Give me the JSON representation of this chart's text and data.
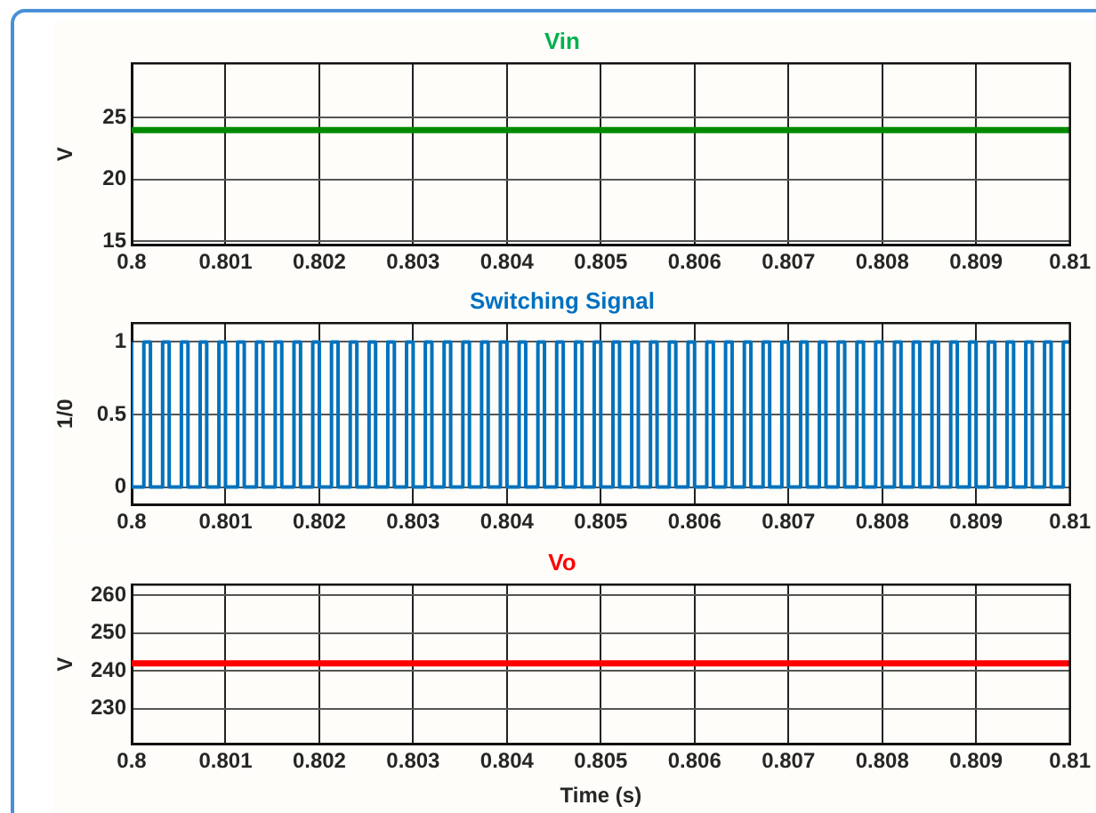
{
  "chart_data": [
    {
      "type": "line",
      "title": "Vin",
      "ylabel": "V",
      "x": [
        0.8,
        0.81
      ],
      "series": [
        {
          "color": "#008a00",
          "values": [
            24,
            24
          ]
        }
      ],
      "xlim": [
        0.8,
        0.81
      ],
      "xticks": [
        0.8,
        0.801,
        0.802,
        0.803,
        0.804,
        0.805,
        0.806,
        0.807,
        0.808,
        0.809,
        0.81
      ],
      "ylim": [
        14.7,
        29.4
      ],
      "yticks": [
        15,
        20,
        25
      ],
      "grid": true
    },
    {
      "type": "step",
      "title": "Switching Signal",
      "ylabel": "1/0",
      "x": [
        0.8,
        0.80013,
        0.8002,
        0.80033,
        0.8004,
        0.80053,
        0.8006,
        0.80073,
        0.8008,
        0.80093,
        0.801,
        0.80113,
        0.8012,
        0.80133,
        0.8014,
        0.80153,
        0.8016,
        0.80173,
        0.8018,
        0.80193,
        0.802,
        0.80213,
        0.8022,
        0.80233,
        0.8024,
        0.80253,
        0.8026,
        0.80273,
        0.8028,
        0.80293,
        0.803,
        0.80313,
        0.8032,
        0.80333,
        0.8034,
        0.80353,
        0.8036,
        0.80373,
        0.8038,
        0.80393,
        0.804,
        0.80413,
        0.8042,
        0.80433,
        0.8044,
        0.80453,
        0.8046,
        0.80473,
        0.8048,
        0.80493,
        0.805,
        0.80513,
        0.8052,
        0.80533,
        0.8054,
        0.80553,
        0.8056,
        0.80573,
        0.8058,
        0.80593,
        0.806,
        0.80613,
        0.8062,
        0.80633,
        0.8064,
        0.80653,
        0.8066,
        0.80673,
        0.8068,
        0.80693,
        0.807,
        0.80713,
        0.8072,
        0.80733,
        0.8074,
        0.80753,
        0.8076,
        0.80773,
        0.8078,
        0.80793,
        0.808,
        0.80813,
        0.8082,
        0.80833,
        0.8084,
        0.80853,
        0.8086,
        0.80873,
        0.8088,
        0.80893,
        0.809,
        0.80913,
        0.8092,
        0.80933,
        0.8094,
        0.80953,
        0.8096,
        0.80973,
        0.8098,
        0.80993,
        0.81
      ],
      "series": [
        {
          "color": "#0072bd",
          "values": [
            1,
            0,
            1,
            0,
            1,
            0,
            1,
            0,
            1,
            0,
            1,
            0,
            1,
            0,
            1,
            0,
            1,
            0,
            1,
            0,
            1,
            0,
            1,
            0,
            1,
            0,
            1,
            0,
            1,
            0,
            1,
            0,
            1,
            0,
            1,
            0,
            1,
            0,
            1,
            0,
            1,
            0,
            1,
            0,
            1,
            0,
            1,
            0,
            1,
            0,
            1,
            0,
            1,
            0,
            1,
            0,
            1,
            0,
            1,
            0,
            1,
            0,
            1,
            0,
            1,
            0,
            1,
            0,
            1,
            0,
            1,
            0,
            1,
            0,
            1,
            0,
            1,
            0,
            1,
            0,
            1,
            0,
            1,
            0,
            1,
            0,
            1,
            0,
            1,
            0,
            1,
            0,
            1,
            0,
            1,
            0,
            1,
            0,
            1,
            0,
            1
          ]
        }
      ],
      "xlim": [
        0.8,
        0.81
      ],
      "xticks": [
        0.8,
        0.801,
        0.802,
        0.803,
        0.804,
        0.805,
        0.806,
        0.807,
        0.808,
        0.809,
        0.81
      ],
      "ylim": [
        -0.12,
        1.13
      ],
      "yticks": [
        0,
        0.5,
        1
      ],
      "grid": true
    },
    {
      "type": "line",
      "title": "Vo",
      "ylabel": "V",
      "xlabel": "Time (s)",
      "x": [
        0.8,
        0.81
      ],
      "series": [
        {
          "color": "#ff0000",
          "values": [
            242,
            242
          ]
        }
      ],
      "xlim": [
        0.8,
        0.81
      ],
      "xticks": [
        0.8,
        0.801,
        0.802,
        0.803,
        0.804,
        0.805,
        0.806,
        0.807,
        0.808,
        0.809,
        0.81
      ],
      "ylim": [
        220.6,
        262.9
      ],
      "yticks": [
        230,
        240,
        250,
        260
      ],
      "grid": true
    }
  ]
}
